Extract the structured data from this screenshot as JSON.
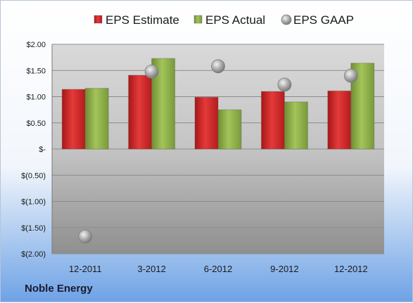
{
  "company_label": "Noble Energy",
  "chart_data": {
    "type": "bar",
    "categories": [
      "12-2011",
      "3-2012",
      "6-2012",
      "9-2012",
      "12-2012"
    ],
    "series": [
      {
        "name": "EPS Estimate",
        "kind": "bar",
        "color": "#d42a2a",
        "values": [
          1.14,
          1.41,
          0.99,
          1.1,
          1.11
        ]
      },
      {
        "name": "EPS Actual",
        "kind": "bar",
        "color": "#8fb04a",
        "values": [
          1.16,
          1.73,
          0.75,
          0.9,
          1.64
        ]
      },
      {
        "name": "EPS GAAP",
        "kind": "marker",
        "color": "#a6a6a6",
        "values": [
          -1.67,
          1.48,
          1.58,
          1.23,
          1.4
        ]
      }
    ],
    "ylim": [
      -2.0,
      2.0
    ],
    "y_ticks": [
      2.0,
      1.5,
      1.0,
      0.5,
      0.0,
      -0.5,
      -1.0,
      -1.5,
      -2.0
    ],
    "y_tick_labels": [
      "$2.00",
      "$1.50",
      "$1.00",
      "$0.50",
      "$-",
      "$(0.50)",
      "$(1.00)",
      "$(1.50)",
      "$(2.00)"
    ],
    "legend_position": "top",
    "grid": true
  }
}
